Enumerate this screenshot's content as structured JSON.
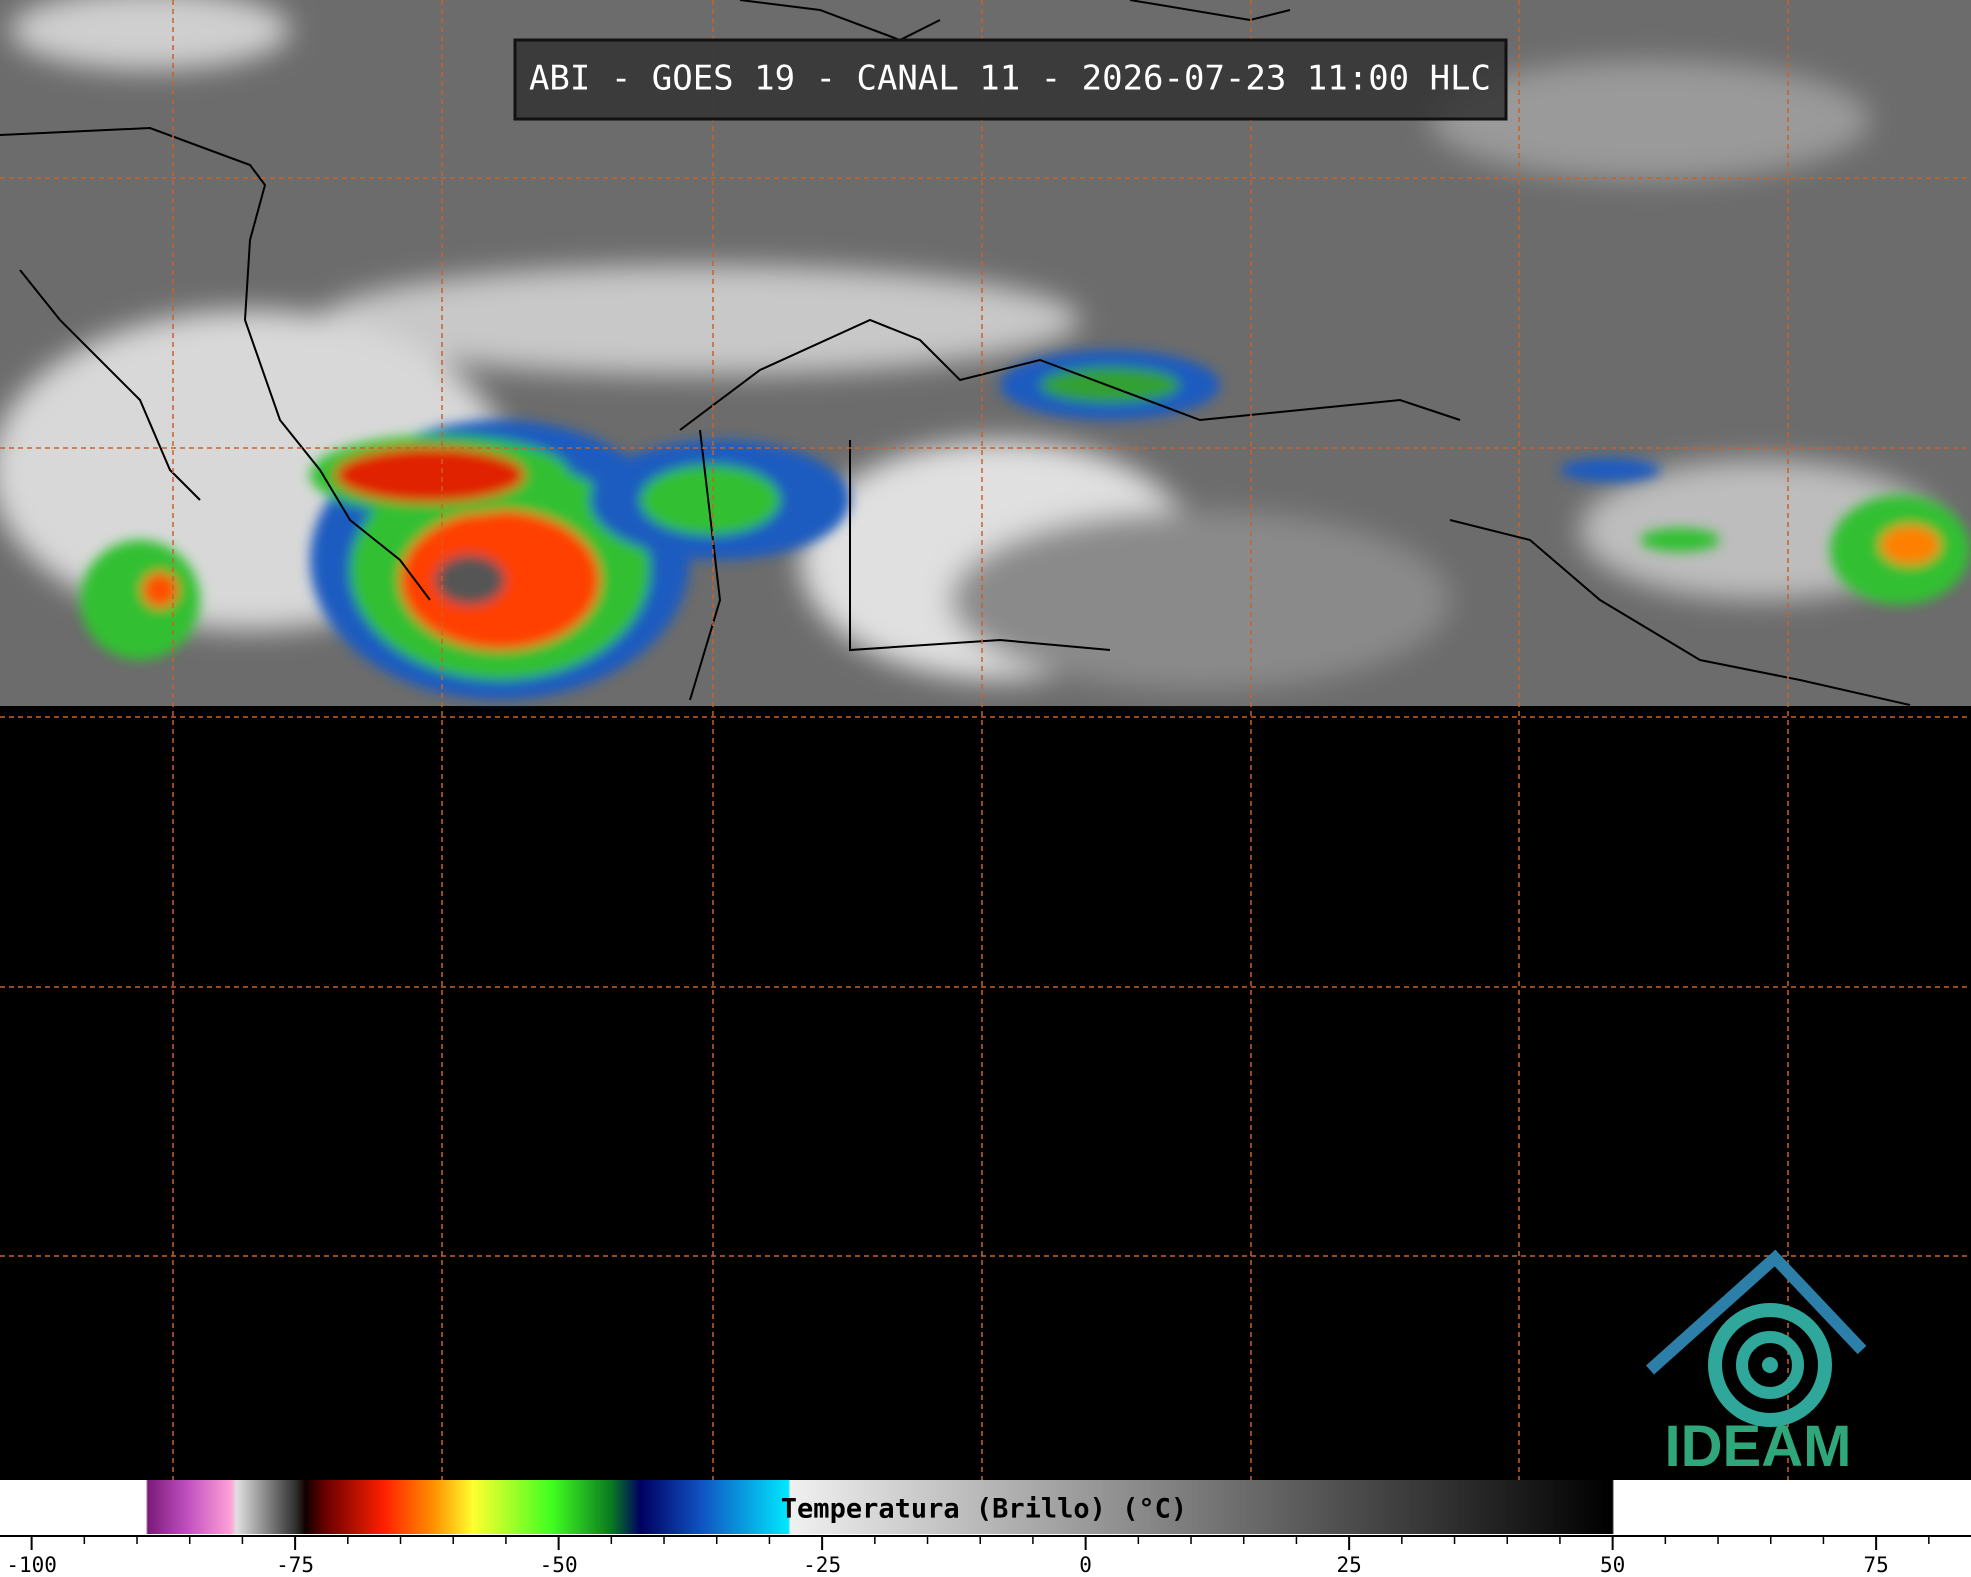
{
  "title": "ABI - GOES 19 - CANAL 11 - 2026-07-23 11:00 HLC",
  "colorbar": {
    "label": "Temperatura (Brillo) (°C)",
    "lim": [
      -103,
      84
    ],
    "ticks": [
      -100,
      -75,
      -50,
      -25,
      0,
      25,
      50,
      75
    ],
    "minor_ticks": [
      -95,
      -90,
      -85,
      -80,
      -70,
      -65,
      -60,
      -55,
      -45,
      -40,
      -35,
      -30,
      -20,
      -15,
      -10,
      -5,
      5,
      10,
      15,
      20,
      30,
      35,
      40,
      45,
      55,
      60,
      65,
      70,
      80
    ]
  },
  "logo": "IDEAM"
}
